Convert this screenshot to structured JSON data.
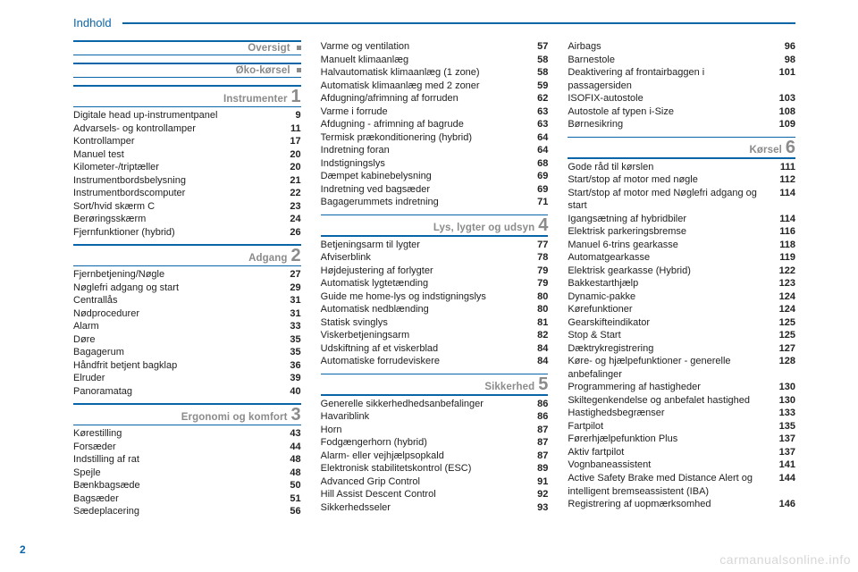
{
  "header_title": "Indhold",
  "page_number": "2",
  "watermark": "carmanualsonline.info",
  "colors": {
    "accent": "#0a65a8",
    "section_grey": "#8b8b8b",
    "text": "#222222",
    "watermark": "#d7d7d7",
    "background": "#ffffff"
  },
  "typography": {
    "body_fontsize_pt": 11,
    "header_fontsize_pt": 13,
    "section_title_fontsize_pt": 11.5,
    "section_number_fontsize_pt": 20,
    "line_height": 1.32
  },
  "columns": [
    {
      "sections": [
        {
          "title": "Oversigt",
          "num": "",
          "marker": "square",
          "entries": []
        },
        {
          "title": "Øko-kørsel",
          "num": "",
          "marker": "square",
          "entries": []
        },
        {
          "title": "Instrumenter",
          "num": "1",
          "marker": "num",
          "entries": [
            {
              "label": "Digitale head up-instrumentpanel",
              "page": "9"
            },
            {
              "label": "Advarsels- og kontrollamper",
              "page": "11"
            },
            {
              "label": "Kontrollamper",
              "page": "17"
            },
            {
              "label": "Manuel test",
              "page": "20"
            },
            {
              "label": "Kilometer-/triptæller",
              "page": "20"
            },
            {
              "label": "Instrumentbordsbelysning",
              "page": "21"
            },
            {
              "label": "Instrumentbordscomputer",
              "page": "22"
            },
            {
              "label": "Sort/hvid skærm C",
              "page": "23"
            },
            {
              "label": "Berøringsskærm",
              "page": "24"
            },
            {
              "label": "Fjernfunktioner (hybrid)",
              "page": "26"
            }
          ]
        },
        {
          "title": "Adgang",
          "num": "2",
          "marker": "num",
          "entries": [
            {
              "label": "Fjernbetjening/Nøgle",
              "page": "27"
            },
            {
              "label": "Nøglefri adgang og start",
              "page": "29"
            },
            {
              "label": "Centrallås",
              "page": "31"
            },
            {
              "label": "Nødprocedurer",
              "page": "31"
            },
            {
              "label": "Alarm",
              "page": "33"
            },
            {
              "label": "Døre",
              "page": "35"
            },
            {
              "label": "Bagagerum",
              "page": "35"
            },
            {
              "label": "Håndfrit betjent bagklap",
              "page": "36"
            },
            {
              "label": "Elruder",
              "page": "39"
            },
            {
              "label": "Panoramatag",
              "page": "40"
            }
          ]
        },
        {
          "title": "Ergonomi og komfort",
          "num": "3",
          "marker": "num",
          "entries": [
            {
              "label": "Kørestilling",
              "page": "43"
            },
            {
              "label": "Forsæder",
              "page": "44"
            },
            {
              "label": "Indstilling af rat",
              "page": "48"
            },
            {
              "label": "Spejle",
              "page": "48"
            },
            {
              "label": "Bænkbagsæde",
              "page": "50"
            },
            {
              "label": "Bagsæder",
              "page": "51"
            },
            {
              "label": "Sædeplacering",
              "page": "56"
            }
          ]
        }
      ]
    },
    {
      "sections": [
        {
          "title": "",
          "num": "",
          "marker": "none",
          "entries": [
            {
              "label": "Varme og ventilation",
              "page": "57"
            },
            {
              "label": "Manuelt klimaanlæg",
              "page": "58"
            },
            {
              "label": "Halvautomatisk klimaanlæg (1 zone)",
              "page": "58"
            },
            {
              "label": "Automatisk klimaanlæg med 2 zoner",
              "page": "59"
            },
            {
              "label": "Afdugning/afrimning af forruden",
              "page": "62"
            },
            {
              "label": "Varme i forrude",
              "page": "63"
            },
            {
              "label": "Afdugning - afrimning af bagrude",
              "page": "63"
            },
            {
              "label": "Termisk prækonditionering (hybrid)",
              "page": "64"
            },
            {
              "label": "Indretning foran",
              "page": "64"
            },
            {
              "label": "Indstigningslys",
              "page": "68"
            },
            {
              "label": "Dæmpet kabinebelysning",
              "page": "69"
            },
            {
              "label": "Indretning ved bagsæder",
              "page": "69"
            },
            {
              "label": "Bagagerummets indretning",
              "page": "71"
            }
          ]
        },
        {
          "title": "Lys, lygter og udsyn",
          "num": "4",
          "marker": "num",
          "entries": [
            {
              "label": "Betjeningsarm til lygter",
              "page": "77"
            },
            {
              "label": "Afviserblink",
              "page": "78"
            },
            {
              "label": "Højdejustering af forlygter",
              "page": "79"
            },
            {
              "label": "Automatisk lygtetænding",
              "page": "79"
            },
            {
              "label": "Guide me home-lys og indstigningslys",
              "page": "80"
            },
            {
              "label": "Automatisk nedblænding",
              "page": "80"
            },
            {
              "label": "Statisk svinglys",
              "page": "81"
            },
            {
              "label": "Viskerbetjeningsarm",
              "page": "82"
            },
            {
              "label": "Udskiftning af et viskerblad",
              "page": "84"
            },
            {
              "label": "Automatiske forrudeviskere",
              "page": "84"
            }
          ]
        },
        {
          "title": "Sikkerhed",
          "num": "5",
          "marker": "num",
          "entries": [
            {
              "label": "Generelle sikkerhedhedsanbefalinger",
              "page": "86"
            },
            {
              "label": "Havariblink",
              "page": "86"
            },
            {
              "label": "Horn",
              "page": "87"
            },
            {
              "label": "Fodgængerhorn (hybrid)",
              "page": "87"
            },
            {
              "label": "Alarm- eller vejhjælpsopkald",
              "page": "87"
            },
            {
              "label": "Elektronisk stabilitetskontrol (ESC)",
              "page": "89"
            },
            {
              "label": "Advanced Grip Control",
              "page": "91"
            },
            {
              "label": "Hill Assist Descent Control",
              "page": "92"
            },
            {
              "label": "Sikkerhedsseler",
              "page": "93"
            }
          ]
        }
      ]
    },
    {
      "sections": [
        {
          "title": "",
          "num": "",
          "marker": "none",
          "entries": [
            {
              "label": "Airbags",
              "page": "96"
            },
            {
              "label": "Barnestole",
              "page": "98"
            },
            {
              "label": "Deaktivering af frontairbaggen i passagersiden",
              "page": "101"
            },
            {
              "label": "ISOFIX-autostole",
              "page": "103"
            },
            {
              "label": "Autostole af typen i-Size",
              "page": "108"
            },
            {
              "label": "Børnesikring",
              "page": "109"
            }
          ]
        },
        {
          "title": "Kørsel",
          "num": "6",
          "marker": "num",
          "entries": [
            {
              "label": "Gode råd til kørslen",
              "page": "111"
            },
            {
              "label": "Start/stop af motor med nøgle",
              "page": "112"
            },
            {
              "label": "Start/stop af motor med Nøglefri adgang og start",
              "page": "114"
            },
            {
              "label": "Igangsætning af hybridbiler",
              "page": "114"
            },
            {
              "label": "Elektrisk parkeringsbremse",
              "page": "116"
            },
            {
              "label": "Manuel 6-trins gearkasse",
              "page": "118"
            },
            {
              "label": "Automatgearkasse",
              "page": "119"
            },
            {
              "label": "Elektrisk gearkasse (Hybrid)",
              "page": "122"
            },
            {
              "label": "Bakkestarthjælp",
              "page": "123"
            },
            {
              "label": "Dynamic-pakke",
              "page": "124"
            },
            {
              "label": "Kørefunktioner",
              "page": "124"
            },
            {
              "label": "Gearskifteindikator",
              "page": "125"
            },
            {
              "label": "Stop & Start",
              "page": "125"
            },
            {
              "label": "Dæktrykregistrering",
              "page": "127"
            },
            {
              "label": "Køre- og hjælpefunktioner - generelle anbefalinger",
              "page": "128"
            },
            {
              "label": "Programmering af hastigheder",
              "page": "130"
            },
            {
              "label": "Skiltegenkendelse og anbefalet hastighed",
              "page": "130"
            },
            {
              "label": "Hastighedsbegrænser",
              "page": "133"
            },
            {
              "label": "Fartpilot",
              "page": "135"
            },
            {
              "label": "Førerhjælpefunktion Plus",
              "page": "137"
            },
            {
              "label": "Aktiv fartpilot",
              "page": "137"
            },
            {
              "label": "Vognbaneassistent",
              "page": "141"
            },
            {
              "label": "Active Safety Brake med Distance Alert og intelligent bremseassistent (IBA)",
              "page": "144"
            },
            {
              "label": "Registrering af uopmærksomhed",
              "page": "146"
            }
          ]
        }
      ]
    }
  ]
}
